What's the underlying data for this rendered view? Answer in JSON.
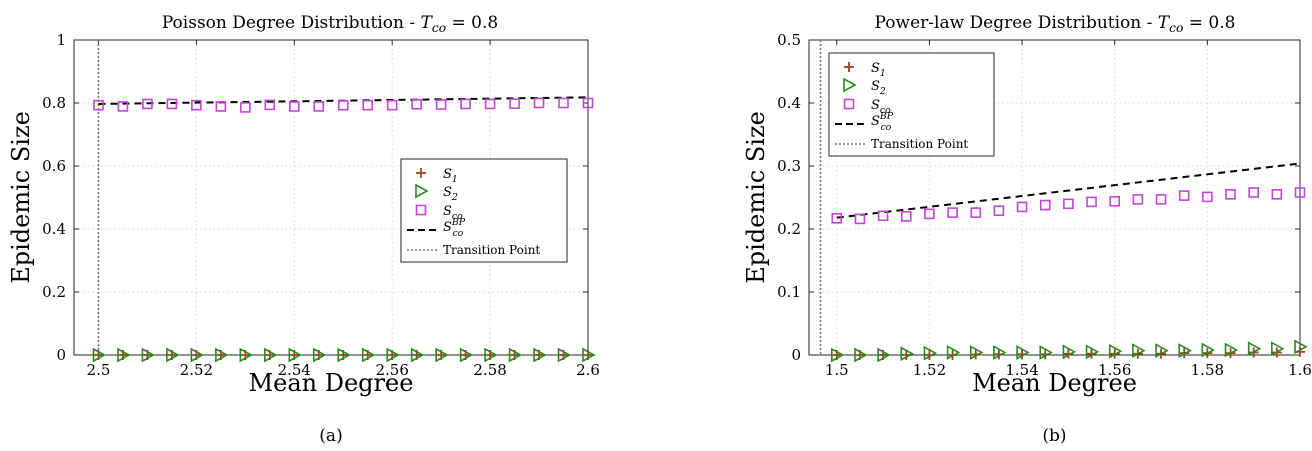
{
  "colors": {
    "s1": "#a0441f",
    "s2": "#2a8a1e",
    "sco": "#c046d8",
    "bp": "#000000",
    "transition": "#777777",
    "grid": "#d6d6d6"
  },
  "legend_labels": {
    "s1": {
      "base": "S",
      "sub": "1"
    },
    "s2": {
      "base": "S",
      "sub": "2"
    },
    "sco": {
      "base": "S",
      "sub": "co"
    },
    "bp": {
      "base": "S",
      "sub": "co",
      "sup": "BP"
    },
    "transition": "Transition Point"
  },
  "chart_data": [
    {
      "type": "scatter",
      "panel_label": "(a)",
      "title": "Poisson Degree Distribution - ",
      "title_math": {
        "base": "T",
        "sub": "co",
        "rest": " = 0.8"
      },
      "xlabel": "Mean Degree",
      "ylabel": "Epidemic Size",
      "xlim": [
        2.495,
        2.6
      ],
      "ylim": [
        0,
        1
      ],
      "xticks": [
        2.5,
        2.52,
        2.54,
        2.56,
        2.58,
        2.6
      ],
      "xtick_labels": [
        "2.5",
        "2.52",
        "2.54",
        "2.56",
        "2.58",
        "2.6"
      ],
      "yticks": [
        0,
        0.2,
        0.4,
        0.6,
        0.8,
        1
      ],
      "ytick_labels": [
        "0",
        "0.2",
        "0.4",
        "0.6",
        "0.8",
        "1"
      ],
      "grid": true,
      "legend_position": "center-right",
      "transition_x": 2.5,
      "x": [
        2.5,
        2.505,
        2.51,
        2.515,
        2.52,
        2.525,
        2.53,
        2.535,
        2.54,
        2.545,
        2.55,
        2.555,
        2.56,
        2.565,
        2.57,
        2.575,
        2.58,
        2.585,
        2.59,
        2.595,
        2.6
      ],
      "series": [
        {
          "name": "S1",
          "values": [
            0,
            0,
            0,
            0,
            0,
            0,
            0,
            0,
            0,
            0,
            0,
            0,
            0,
            0,
            0,
            0,
            0,
            0,
            0,
            0,
            0
          ]
        },
        {
          "name": "S2",
          "values": [
            0,
            0,
            0,
            0,
            0,
            0,
            0,
            0,
            0,
            0,
            0,
            0,
            0,
            0,
            0,
            0,
            0,
            0,
            0,
            0,
            0
          ]
        },
        {
          "name": "Sco",
          "values": [
            0.793,
            0.789,
            0.797,
            0.797,
            0.793,
            0.789,
            0.786,
            0.794,
            0.789,
            0.789,
            0.793,
            0.793,
            0.793,
            0.796,
            0.795,
            0.797,
            0.797,
            0.798,
            0.8,
            0.8,
            0.8
          ]
        },
        {
          "name": "Sco BP",
          "line": [
            [
              2.5,
              0.797
            ],
            [
              2.6,
              0.818
            ]
          ]
        }
      ]
    },
    {
      "type": "scatter",
      "panel_label": "(b)",
      "title": "Power-law Degree Distribution - ",
      "title_math": {
        "base": "T",
        "sub": "co",
        "rest": " = 0.8"
      },
      "xlabel": "Mean Degree",
      "ylabel": "Epidemic Size",
      "xlim": [
        1.494,
        1.6
      ],
      "ylim": [
        0,
        0.5
      ],
      "xticks": [
        1.5,
        1.52,
        1.54,
        1.56,
        1.58,
        1.6
      ],
      "xtick_labels": [
        "1.5",
        "1.52",
        "1.54",
        "1.56",
        "1.58",
        "1.6"
      ],
      "yticks": [
        0,
        0.1,
        0.2,
        0.3,
        0.4,
        0.5
      ],
      "ytick_labels": [
        "0",
        "0.1",
        "0.2",
        "0.3",
        "0.4",
        "0.5"
      ],
      "grid": true,
      "legend_position": "top-left",
      "transition_x": 1.4965,
      "x": [
        1.5,
        1.505,
        1.51,
        1.515,
        1.52,
        1.525,
        1.53,
        1.535,
        1.54,
        1.545,
        1.55,
        1.555,
        1.56,
        1.565,
        1.57,
        1.575,
        1.58,
        1.585,
        1.59,
        1.595,
        1.6
      ],
      "series": [
        {
          "name": "S1",
          "values": [
            0,
            0,
            0,
            0,
            0,
            0,
            0.001,
            0.001,
            0.001,
            0.001,
            0.002,
            0.002,
            0.002,
            0.002,
            0.002,
            0.003,
            0.003,
            0.003,
            0.004,
            0.004,
            0.005
          ]
        },
        {
          "name": "S2",
          "values": [
            0,
            0,
            0,
            0.002,
            0.003,
            0.004,
            0.004,
            0.004,
            0.004,
            0.004,
            0.005,
            0.005,
            0.006,
            0.007,
            0.007,
            0.007,
            0.008,
            0.008,
            0.01,
            0.01,
            0.013
          ]
        },
        {
          "name": "Sco",
          "values": [
            0.217,
            0.216,
            0.221,
            0.22,
            0.224,
            0.226,
            0.226,
            0.229,
            0.235,
            0.238,
            0.24,
            0.243,
            0.244,
            0.247,
            0.247,
            0.253,
            0.251,
            0.255,
            0.258,
            0.255,
            0.258
          ]
        },
        {
          "name": "Sco BP",
          "line": [
            [
              1.5,
              0.218
            ],
            [
              1.6,
              0.304
            ]
          ]
        }
      ]
    }
  ]
}
